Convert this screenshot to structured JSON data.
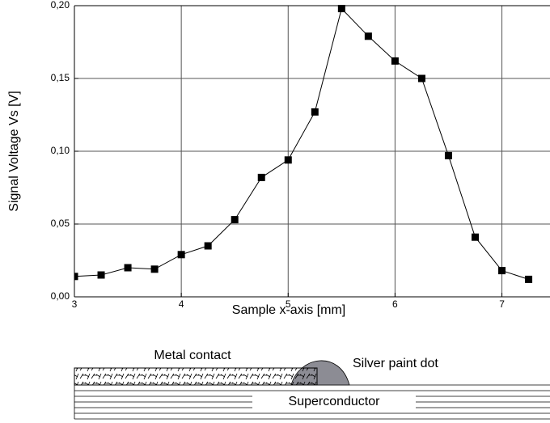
{
  "chart_data": {
    "type": "line",
    "xlabel": "Sample x-axis [mm]",
    "ylabel": "Signal Voltage Vs [V]",
    "x": [
      3,
      3.25,
      3.5,
      3.75,
      4,
      4.25,
      4.5,
      4.75,
      5,
      5.25,
      5.5,
      5.75,
      6,
      6.25,
      6.5,
      6.75,
      7,
      7.25
    ],
    "values": [
      0.014,
      0.015,
      0.02,
      0.019,
      0.029,
      0.035,
      0.053,
      0.082,
      0.094,
      0.127,
      0.198,
      0.179,
      0.162,
      0.15,
      0.097,
      0.041,
      0.018,
      0.012
    ],
    "color": "#000000",
    "xlim": [
      3,
      7.45
    ],
    "ylim": [
      0,
      0.2
    ],
    "xticks": [
      3,
      4,
      5,
      6,
      7
    ],
    "yticks": [
      {
        "value": 0,
        "label": "0,00"
      },
      {
        "value": 0.05,
        "label": "0,05"
      },
      {
        "value": 0.1,
        "label": "0,10"
      },
      {
        "value": 0.15,
        "label": "0,15"
      },
      {
        "value": 0.2,
        "label": "0,20"
      }
    ],
    "grid": true
  },
  "diagram": {
    "metal_contact": "Metal contact",
    "silver_dot": "Silver paint dot",
    "superconductor": "Superconductor"
  }
}
